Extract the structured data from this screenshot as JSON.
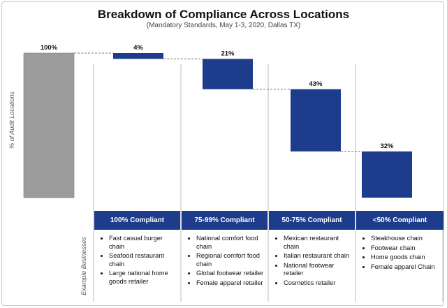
{
  "chart_data": {
    "type": "waterfall",
    "title": "Breakdown of Compliance Across Locations",
    "subtitle": "(Mandatory Standards, May 1-3, 2020, Dallas TX)",
    "ylabel": "% of Audit Locations",
    "total": {
      "value": 100,
      "label": "100%"
    },
    "categories": [
      "100% Compliant",
      "75-99% Compliant",
      "50-75% Compliant",
      "<50% Compliant"
    ],
    "values": [
      4,
      21,
      43,
      32
    ],
    "value_labels": [
      "4%",
      "21%",
      "43%",
      "32%"
    ],
    "ylim": [
      0,
      100
    ],
    "colors": {
      "total": "#9c9c9c",
      "segment": "#1e3c8c",
      "connector": "#777777"
    }
  },
  "table": {
    "row_label": "Example Businesses",
    "columns": [
      {
        "header": "100% Compliant",
        "items": [
          "Fast casual burger chain",
          "Seafood restaurant chain",
          "Large national home goods retailer"
        ]
      },
      {
        "header": "75-99% Compliant",
        "items": [
          "National comfort food chain",
          "Regional comfort food chain",
          "Global footwear retailer",
          "Female apparel retailer"
        ]
      },
      {
        "header": "50-75% Compliant",
        "items": [
          "Mexican restaurant chain",
          "Italian restaurant chain",
          "National footwear retailer",
          "Cosmetics retailer"
        ]
      },
      {
        "header": "<50% Compliant",
        "items": [
          "Steakhouse chain",
          "Footwear chain",
          "Home goods chain",
          "Female apparel Chain"
        ]
      }
    ]
  }
}
